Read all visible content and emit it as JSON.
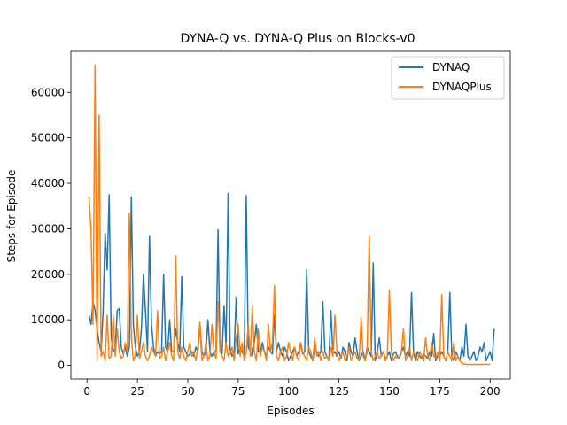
{
  "chart_data": {
    "type": "line",
    "title": "DYNA-Q vs. DYNA-Q Plus on Blocks-v0",
    "xlabel": "Episodes",
    "ylabel": "Steps for Episode",
    "xlim": [
      -8,
      210
    ],
    "ylim": [
      -3000,
      69000
    ],
    "xticks": [
      0,
      25,
      50,
      75,
      100,
      125,
      150,
      175,
      200
    ],
    "yticks": [
      0,
      10000,
      20000,
      30000,
      40000,
      50000,
      60000
    ],
    "grid": false,
    "legend": "top-right",
    "series": [
      {
        "name": "DYNAQ",
        "color": "#1f77b4",
        "values": [
          11000,
          9000,
          14000,
          12000,
          8000,
          5000,
          3000,
          12000,
          29000,
          21000,
          37500,
          6000,
          3000,
          4000,
          12000,
          12500,
          4000,
          2500,
          4000,
          2000,
          4000,
          37000,
          9000,
          4000,
          2000,
          3000,
          8000,
          20000,
          12000,
          3000,
          28500,
          9000,
          4000,
          2000,
          3000,
          2500,
          3000,
          20000,
          4000,
          3000,
          10000,
          3000,
          3000,
          8000,
          5000,
          3000,
          19500,
          4000,
          3000,
          2000,
          2500,
          3000,
          2000,
          4000,
          3000,
          9000,
          3000,
          2000,
          3000,
          10000,
          3000,
          2000,
          3000,
          3000,
          29800,
          3000,
          2500,
          13000,
          4000,
          37800,
          3500,
          2000,
          3000,
          15000,
          2500,
          4000,
          3000,
          2000,
          37300,
          4000,
          3000,
          2000,
          5000,
          9000,
          3000,
          3000,
          5000,
          3000,
          2000,
          4000,
          3000,
          2500,
          11000,
          3000,
          5000,
          3000,
          2000,
          4000,
          3000,
          1000,
          2000,
          3000,
          4000,
          2000,
          3000,
          5000,
          2500,
          3000,
          21000,
          3000,
          2000,
          1000,
          4000,
          3000,
          2000,
          3000,
          14000,
          3000,
          2000,
          1000,
          12000,
          2500,
          3000,
          2000,
          3000,
          1500,
          4000,
          3000,
          1000,
          5000,
          3000,
          2000,
          6000,
          3000,
          1000,
          2000,
          3000,
          1000,
          4000,
          3000,
          2000,
          22500,
          1000,
          3000,
          6000,
          2000,
          3000,
          1500,
          2000,
          3000,
          1000,
          2500,
          3000,
          2000,
          1500,
          3000,
          4000,
          2000,
          3000,
          2000,
          16000,
          3000,
          1000,
          3000,
          2000,
          1500,
          2500,
          2000,
          1500,
          3000,
          2000,
          7000,
          1000,
          2000,
          2000,
          3000,
          2000,
          1000,
          3000,
          16000,
          2000,
          1000,
          3000,
          2000,
          1000,
          4000,
          2000,
          9000,
          2000,
          1000,
          2000,
          3000,
          1000,
          2000,
          4000,
          3000,
          5000,
          1000,
          2000,
          3000,
          1000,
          8000
        ]
      },
      {
        "name": "DYNAQPlus",
        "color": "#ff7f0e",
        "values": [
          37000,
          30000,
          9000,
          66000,
          1000,
          55000,
          2000,
          3000,
          1000,
          11000,
          1500,
          2000,
          11000,
          2000,
          8000,
          3000,
          1500,
          2000,
          5000,
          3000,
          33500,
          6000,
          1000,
          2000,
          11000,
          1500,
          3000,
          5000,
          2000,
          1000,
          2000,
          4000,
          3000,
          2000,
          12000,
          1500,
          2000,
          4000,
          1000,
          3000,
          5000,
          2000,
          1000,
          24000,
          3000,
          1500,
          4000,
          2000,
          1000,
          3000,
          5000,
          2000,
          3000,
          1000,
          4000,
          9500,
          1000,
          2000,
          5000,
          1000,
          2000,
          9000,
          3000,
          1500,
          14000,
          3000,
          2000,
          1000,
          5000,
          2000,
          2500,
          4000,
          1000,
          6000,
          9000,
          2000,
          5000,
          1000,
          3000,
          9000,
          2000,
          13000,
          3000,
          1000,
          8000,
          2000,
          4000,
          3000,
          1000,
          9000,
          3000,
          5000,
          17500,
          2000,
          1000,
          3000,
          4000,
          1000,
          2000,
          5000,
          3000,
          1000,
          4000,
          2000,
          1000,
          5000,
          3000,
          2000,
          1000,
          4000,
          3000,
          1000,
          6000,
          2000,
          3000,
          1000,
          3000,
          1500,
          2000,
          1000,
          4000,
          2000,
          11000,
          3000,
          1000,
          2000,
          3000,
          1000,
          2000,
          4000,
          1000,
          2000,
          3000,
          1500,
          1000,
          10500,
          2000,
          1000,
          3000,
          28500,
          3000,
          1000,
          2000,
          3000,
          1500,
          2000,
          3000,
          1000,
          2000,
          16500,
          3000,
          1000,
          2000,
          1500,
          2000,
          3000,
          8000,
          1000,
          2000,
          4000,
          1000,
          3000,
          2000,
          1000,
          3000,
          2000,
          1000,
          6000,
          2000,
          1000,
          5000,
          2000,
          1500,
          3000,
          1000,
          15500,
          2000,
          1000,
          3000,
          2000,
          1000,
          5000,
          1000,
          2000,
          1000,
          500,
          300,
          200,
          200,
          200,
          200,
          200,
          200,
          200,
          200,
          200,
          200,
          200,
          200,
          200
        ]
      }
    ]
  }
}
